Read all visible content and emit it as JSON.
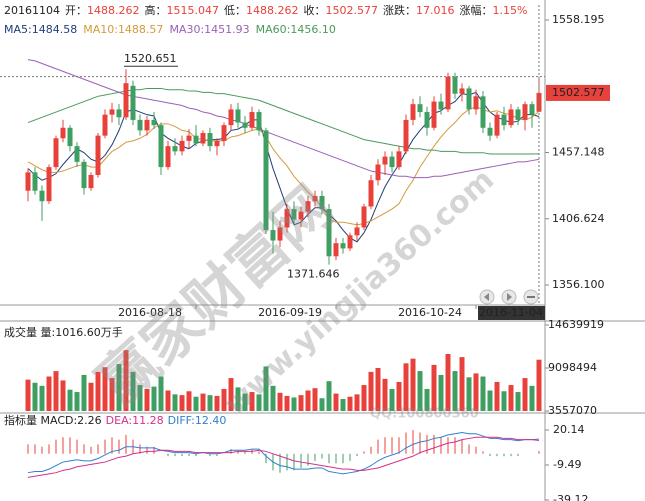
{
  "header": {
    "date": "20161104",
    "items": [
      {
        "label": "开：",
        "value": "1488.262"
      },
      {
        "label": "高：",
        "value": "1515.047"
      },
      {
        "label": "低：",
        "value": "1488.262"
      },
      {
        "label": "收：",
        "value": "1502.577"
      },
      {
        "label": "涨跌：",
        "value": "17.016"
      },
      {
        "label": "涨幅：",
        "value": "1.15%"
      }
    ]
  },
  "watermarks": [
    "赢家财富网",
    "www.yingjia360.com",
    "QQ:100800360"
  ],
  "chart_data": [
    {
      "type": "candlestick",
      "up_color": "#e8413b",
      "down_color": "#3f9e62",
      "categories": [
        null,
        null,
        null,
        null,
        null,
        null,
        null,
        null,
        null,
        null,
        null,
        null,
        null,
        null,
        null,
        null,
        null,
        null,
        null,
        null,
        null,
        null,
        null,
        null,
        "2016-08-18",
        null,
        null,
        null,
        null,
        null,
        null,
        null,
        null,
        null,
        null,
        null,
        null,
        null,
        null,
        null,
        null,
        null,
        null,
        null,
        "2016-09-19",
        null,
        null,
        null,
        null,
        null,
        null,
        null,
        null,
        null,
        null,
        null,
        null,
        null,
        null,
        null,
        null,
        null,
        null,
        null,
        "2016-10-24",
        null,
        null,
        null,
        null,
        null,
        null,
        null,
        null,
        "2016-11-04"
      ],
      "open": [
        1428,
        1442,
        1428,
        1420,
        1446,
        1468,
        1476,
        1462,
        1450,
        1430,
        1440,
        1470,
        1486,
        1490,
        1484,
        1508,
        1482,
        1474,
        1482,
        1478,
        1446,
        1462,
        1458,
        1466,
        1470,
        1464,
        1472,
        1462,
        1466,
        1478,
        1490,
        1480,
        1476,
        1488,
        1474,
        1398,
        1390,
        1400,
        1414,
        1406,
        1412,
        1420,
        1424,
        1414,
        1378,
        1388,
        1384,
        1394,
        1400,
        1416,
        1436,
        1448,
        1454,
        1446,
        1458,
        1482,
        1494,
        1488,
        1476,
        1496,
        1490,
        1515,
        1502,
        1506,
        1490,
        1500,
        1476,
        1470,
        1486,
        1478,
        1490,
        1482,
        1494,
        1488.262
      ],
      "high": [
        1445,
        1446,
        1432,
        1448,
        1470,
        1482,
        1478,
        1465,
        1452,
        1442,
        1472,
        1490,
        1495,
        1494,
        1520.651,
        1512,
        1486,
        1485,
        1488,
        1480,
        1466,
        1468,
        1470,
        1475,
        1478,
        1474,
        1476,
        1468,
        1480,
        1494,
        1495,
        1485,
        1492,
        1490,
        1476,
        1412,
        1405,
        1418,
        1420,
        1416,
        1424,
        1428,
        1428,
        1418,
        1392,
        1392,
        1396,
        1404,
        1418,
        1440,
        1452,
        1458,
        1458,
        1462,
        1486,
        1498,
        1500,
        1492,
        1500,
        1502,
        1518,
        1518,
        1510,
        1508,
        1505,
        1504,
        1480,
        1488,
        1492,
        1494,
        1492,
        1496,
        1496,
        1515.047
      ],
      "low": [
        1420,
        1425,
        1405,
        1418,
        1444,
        1465,
        1458,
        1446,
        1425,
        1428,
        1438,
        1468,
        1480,
        1478,
        1482,
        1478,
        1470,
        1470,
        1475,
        1440,
        1444,
        1455,
        1455,
        1460,
        1462,
        1462,
        1458,
        1455,
        1462,
        1474,
        1476,
        1472,
        1474,
        1470,
        1395,
        1380,
        1385,
        1396,
        1402,
        1400,
        1408,
        1416,
        1410,
        1371.646,
        1375,
        1380,
        1382,
        1390,
        1398,
        1414,
        1432,
        1440,
        1442,
        1444,
        1456,
        1478,
        1484,
        1470,
        1474,
        1486,
        1488,
        1498,
        1496,
        1486,
        1486,
        1472,
        1466,
        1468,
        1474,
        1476,
        1478,
        1474,
        1476,
        1488.262
      ],
      "close": [
        1442,
        1428,
        1420,
        1446,
        1468,
        1476,
        1462,
        1450,
        1430,
        1440,
        1470,
        1486,
        1490,
        1484,
        1510,
        1482,
        1474,
        1482,
        1478,
        1446,
        1462,
        1458,
        1466,
        1470,
        1464,
        1472,
        1462,
        1466,
        1478,
        1490,
        1480,
        1476,
        1488,
        1474,
        1398,
        1390,
        1400,
        1414,
        1406,
        1412,
        1420,
        1424,
        1414,
        1378,
        1388,
        1384,
        1394,
        1400,
        1416,
        1436,
        1448,
        1454,
        1446,
        1458,
        1482,
        1494,
        1488,
        1476,
        1496,
        1490,
        1515,
        1502,
        1506,
        1490,
        1500,
        1476,
        1470,
        1486,
        1478,
        1490,
        1482,
        1494,
        1486,
        1502.577
      ],
      "series": [
        {
          "name": "MA5:1484.58",
          "color": "#1f3f7a",
          "values": [
            1445,
            1440,
            1436,
            1438,
            1441,
            1448,
            1454,
            1460,
            1457,
            1452,
            1450,
            1455,
            1463,
            1474,
            1488,
            1490,
            1488,
            1486,
            1485,
            1472,
            1468,
            1465,
            1462,
            1460,
            1464,
            1466,
            1467,
            1467,
            1468,
            1474,
            1475,
            1478,
            1482,
            1482,
            1463,
            1445,
            1430,
            1415,
            1402,
            1404,
            1410,
            1415,
            1415,
            1410,
            1405,
            1398,
            1392,
            1389,
            1396,
            1406,
            1419,
            1431,
            1440,
            1448,
            1458,
            1467,
            1474,
            1480,
            1487,
            1489,
            1493,
            1496,
            1502,
            1501,
            1503,
            1495,
            1488,
            1484,
            1482,
            1480,
            1481,
            1486,
            1486,
            1484.58
          ]
        },
        {
          "name": "MA10:1488.57",
          "color": "#d49a3c",
          "values": [
            1450,
            1447,
            1444,
            1442,
            1442,
            1443,
            1445,
            1447,
            1448,
            1446,
            1446,
            1452,
            1458,
            1461,
            1465,
            1466,
            1468,
            1471,
            1476,
            1479,
            1479,
            1477,
            1474,
            1473,
            1468,
            1467,
            1466,
            1466,
            1466,
            1469,
            1470,
            1472,
            1474,
            1475,
            1469,
            1460,
            1453,
            1447,
            1439,
            1433,
            1427,
            1422,
            1415,
            1406,
            1404,
            1404,
            1403,
            1402,
            1403,
            1405,
            1408,
            1411,
            1414,
            1418,
            1428,
            1436,
            1446,
            1454,
            1462,
            1469,
            1475,
            1480,
            1486,
            1490,
            1492,
            1490,
            1488,
            1489,
            1487,
            1486,
            1483,
            1482,
            1484,
            1488.57
          ]
        },
        {
          "name": "MA30:1451.93",
          "color": "#9b5fb8",
          "values": [
            1528,
            1527,
            1525,
            1523,
            1521,
            1519,
            1517,
            1515,
            1513,
            1511,
            1509,
            1507,
            1505,
            1503,
            1501,
            1500,
            1499,
            1498,
            1497,
            1496,
            1495,
            1494,
            1493,
            1491,
            1490,
            1488,
            1487,
            1485,
            1484,
            1482,
            1481,
            1479,
            1477,
            1475,
            1473,
            1471,
            1469,
            1467,
            1465,
            1463,
            1461,
            1459,
            1457,
            1455,
            1453,
            1451,
            1449,
            1447,
            1445,
            1443,
            1442,
            1441,
            1440,
            1439,
            1439,
            1438,
            1438,
            1438,
            1439,
            1439,
            1440,
            1441,
            1442,
            1443,
            1444,
            1445,
            1446,
            1447,
            1448,
            1449,
            1450,
            1450,
            1451,
            1451.93
          ]
        },
        {
          "name": "MA60:1456.10",
          "color": "#4a9a5a",
          "values": [
            1480,
            1482,
            1484,
            1486,
            1488,
            1490,
            1492,
            1494,
            1496,
            1498,
            1500,
            1501,
            1502,
            1503,
            1504,
            1505,
            1505,
            1506,
            1506,
            1506,
            1505,
            1505,
            1505,
            1504,
            1504,
            1503,
            1503,
            1502,
            1502,
            1501,
            1500,
            1499,
            1498,
            1497,
            1495,
            1493,
            1491,
            1489,
            1487,
            1485,
            1483,
            1481,
            1479,
            1477,
            1475,
            1473,
            1471,
            1469,
            1467,
            1466,
            1465,
            1464,
            1463,
            1462,
            1461,
            1460,
            1460,
            1459,
            1459,
            1458,
            1458,
            1458,
            1457,
            1457,
            1457,
            1457,
            1456,
            1456,
            1456,
            1456,
            1456,
            1456,
            1456,
            1456.1
          ]
        }
      ],
      "ylim": [
        1340.85,
        1569.63
      ],
      "yticks": [
        1558.195,
        1457.148,
        1406.624,
        {
          "value": 1356.1,
          "label": "1356.100"
        }
      ]
    },
    {
      "type": "volume",
      "title": "成交量 量:1016.60万手",
      "values": [
        7600000,
        7200000,
        6800000,
        8000000,
        8700000,
        7500000,
        6300000,
        6000000,
        8200000,
        7200000,
        8600000,
        9200000,
        7800000,
        9600000,
        11400000,
        8600000,
        6900000,
        6400000,
        6700000,
        8000000,
        6200000,
        5700000,
        5600000,
        6100000,
        5400000,
        5800000,
        5600000,
        5500000,
        6400000,
        7800000,
        6600000,
        5800000,
        6000000,
        5700000,
        9300000,
        6800000,
        5900000,
        5500000,
        5300000,
        5600000,
        6200000,
        6500000,
        5200000,
        7400000,
        5800000,
        5100000,
        5400000,
        5700000,
        6900000,
        8600000,
        9100000,
        7700000,
        6400000,
        7300000,
        9700000,
        10300000,
        8700000,
        6400000,
        9500000,
        8200000,
        10900000,
        8700000,
        10500000,
        7900000,
        8400000,
        8000000,
        6200000,
        7300000,
        6100000,
        6900000,
        6000000,
        7800000,
        6800000,
        10166000
      ],
      "ylim": [
        3557070,
        14639919
      ],
      "yticks": [
        14639919,
        9098494,
        3557070
      ]
    },
    {
      "type": "macd",
      "legend": [
        "指标量 MACD:2.26",
        "DEA:11.28",
        "DIFF:12.40"
      ],
      "up_color": "#e8413b",
      "down_color": "#3f9e62",
      "values": [
        8,
        8,
        6,
        8,
        12,
        14,
        14,
        12,
        8,
        6,
        8,
        12,
        14,
        12,
        16,
        12,
        8,
        6,
        6,
        0,
        -2,
        -2,
        -2,
        -2,
        -2,
        0,
        -2,
        -2,
        0,
        4,
        2,
        2,
        4,
        2,
        -8,
        -14,
        -16,
        -14,
        -14,
        -12,
        -10,
        -6,
        -4,
        -8,
        -8,
        -8,
        -6,
        -2,
        2,
        6,
        12,
        14,
        14,
        14,
        18,
        20,
        18,
        16,
        16,
        14,
        14,
        14,
        12,
        8,
        6,
        2,
        -2,
        -2,
        -2,
        -2,
        -2,
        0,
        0,
        2.26
      ],
      "dif_color": "#2f7fd0",
      "dif": [
        -16,
        -15,
        -15,
        -13,
        -10,
        -7,
        -6,
        -5,
        -6,
        -6,
        -4,
        -1,
        2,
        3,
        6,
        6,
        5,
        5,
        5,
        3,
        2,
        1,
        1,
        1,
        0,
        1,
        0,
        0,
        1,
        3,
        3,
        3,
        4,
        4,
        -2,
        -7,
        -10,
        -11,
        -13,
        -13,
        -13,
        -12,
        -12,
        -15,
        -16,
        -17,
        -16,
        -15,
        -13,
        -10,
        -6,
        -3,
        -1,
        1,
        5,
        8,
        10,
        11,
        13,
        14,
        16,
        17,
        18,
        17,
        17,
        15,
        13,
        13,
        12,
        12,
        11,
        12,
        12,
        12.4
      ],
      "dea_color": "#d4308a",
      "dea": [
        -20,
        -19,
        -18,
        -17,
        -16,
        -14,
        -13,
        -11,
        -10,
        -9,
        -8,
        -7,
        -5,
        -3,
        -2,
        0,
        1,
        2,
        2,
        3,
        3,
        2,
        2,
        2,
        1,
        1,
        1,
        1,
        1,
        1,
        2,
        2,
        2,
        3,
        2,
        0,
        -2,
        -4,
        -6,
        -7,
        -8,
        -9,
        -10,
        -11,
        -12,
        -13,
        -13,
        -14,
        -14,
        -13,
        -12,
        -10,
        -8,
        -6,
        -4,
        -2,
        1,
        3,
        5,
        7,
        9,
        10,
        12,
        13,
        14,
        14,
        14,
        14,
        13,
        13,
        12,
        12,
        12,
        11.28
      ],
      "ylim": [
        -39.12,
        20.14
      ],
      "yticks": [
        20.14,
        -9.49,
        -39.12
      ]
    }
  ]
}
